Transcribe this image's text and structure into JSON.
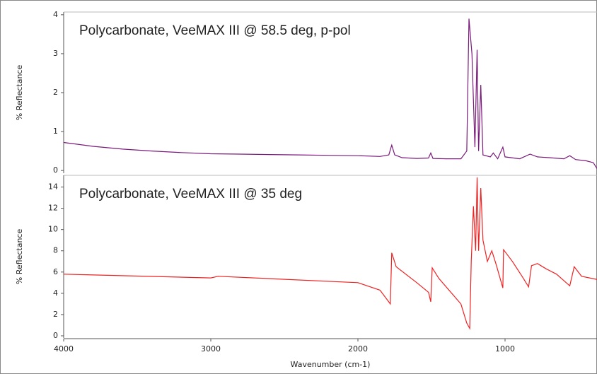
{
  "chart_data": [
    {
      "type": "line",
      "title": "Polycarbonate, VeeMAX III @ 58.5 deg, p-pol",
      "y_label": "% Reflectance",
      "color": "#7a1a7a",
      "x": [
        4000,
        3800,
        3600,
        3400,
        3200,
        3000,
        2800,
        2600,
        2400,
        2200,
        2000,
        1850,
        1790,
        1770,
        1750,
        1700,
        1600,
        1520,
        1505,
        1490,
        1400,
        1300,
        1260,
        1245,
        1225,
        1205,
        1190,
        1180,
        1165,
        1150,
        1100,
        1080,
        1050,
        1015,
        1000,
        900,
        830,
        780,
        700,
        600,
        560,
        520,
        450,
        400,
        375
      ],
      "values": [
        0.72,
        0.62,
        0.55,
        0.5,
        0.46,
        0.43,
        0.42,
        0.41,
        0.4,
        0.39,
        0.38,
        0.36,
        0.4,
        0.65,
        0.4,
        0.33,
        0.31,
        0.32,
        0.45,
        0.31,
        0.3,
        0.3,
        0.5,
        3.9,
        3.0,
        0.6,
        3.1,
        0.5,
        2.2,
        0.4,
        0.35,
        0.45,
        0.3,
        0.6,
        0.35,
        0.3,
        0.42,
        0.35,
        0.33,
        0.3,
        0.38,
        0.28,
        0.25,
        0.2,
        0.05
      ],
      "xlim": [
        4000,
        375
      ],
      "ylim": [
        -0.07,
        4.07
      ],
      "yticks": [
        0,
        1,
        2,
        3,
        4
      ]
    },
    {
      "type": "line",
      "title": "Polycarbonate, VeeMAX III @ 35 deg",
      "y_label": "% Reflectance",
      "x_label": "Wavenumber (cm-1)",
      "color": "#ee2222",
      "x": [
        4000,
        3000,
        2950,
        2000,
        1850,
        1780,
        1770,
        1740,
        1600,
        1520,
        1505,
        1495,
        1450,
        1300,
        1260,
        1240,
        1230,
        1215,
        1200,
        1190,
        1180,
        1165,
        1150,
        1120,
        1090,
        1060,
        1015,
        1010,
        950,
        880,
        840,
        820,
        780,
        720,
        650,
        560,
        530,
        480,
        375
      ],
      "values": [
        5.8,
        5.45,
        5.6,
        5.0,
        4.3,
        3.0,
        7.8,
        6.5,
        5.0,
        4.1,
        3.2,
        6.4,
        5.4,
        3.0,
        1.2,
        0.7,
        7.0,
        12.2,
        8.0,
        14.9,
        8.0,
        13.9,
        9.0,
        7.0,
        8.0,
        6.7,
        4.5,
        8.1,
        7.0,
        5.5,
        4.6,
        6.6,
        6.8,
        6.3,
        5.8,
        4.7,
        6.5,
        5.6,
        5.3
      ],
      "xlim": [
        4000,
        375
      ],
      "ylim": [
        -0.2,
        15.1
      ],
      "xticks": [
        4000,
        3000,
        2000,
        1000
      ],
      "yticks": [
        0,
        2,
        4,
        6,
        8,
        10,
        12,
        14
      ]
    }
  ]
}
